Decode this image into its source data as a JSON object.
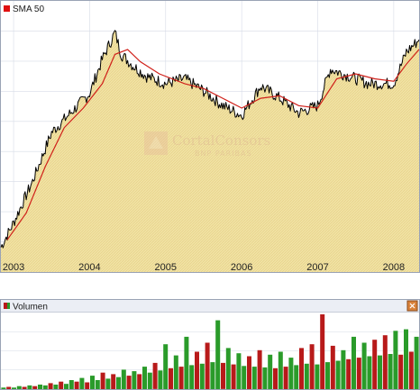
{
  "chart_data": [
    {
      "type": "line",
      "title": "",
      "legend": [
        "SMA 50"
      ],
      "legend_placement": "top-left",
      "xlabel": "",
      "ylabel": "",
      "x_ticks": [
        "2003",
        "2004",
        "2005",
        "2006",
        "2007",
        "2008"
      ],
      "grid": true,
      "series": [
        {
          "name": "",
          "kind": "price",
          "color": "#000000",
          "fill": "#f1e2a4",
          "x": [
            "2002-11",
            "2003-01",
            "2003-04",
            "2003-07",
            "2003-10",
            "2004-01",
            "2004-03",
            "2004-05",
            "2004-06",
            "2004-08",
            "2004-10",
            "2005-01",
            "2005-04",
            "2005-07",
            "2005-10",
            "2006-01",
            "2006-04",
            "2006-07",
            "2006-10",
            "2007-01",
            "2007-03",
            "2007-06",
            "2007-09",
            "2008-01",
            "2008-03",
            "2008-05"
          ],
          "values": [
            0.05,
            0.15,
            0.32,
            0.52,
            0.6,
            0.68,
            0.82,
            0.93,
            0.84,
            0.79,
            0.75,
            0.72,
            0.74,
            0.69,
            0.63,
            0.59,
            0.71,
            0.66,
            0.6,
            0.63,
            0.78,
            0.75,
            0.72,
            0.72,
            0.85,
            0.9
          ]
        },
        {
          "name": "SMA 50",
          "kind": "sma",
          "color": "#d0201a",
          "x": [
            "2002-12",
            "2003-03",
            "2003-06",
            "2003-09",
            "2003-12",
            "2004-03",
            "2004-05",
            "2004-07",
            "2004-09",
            "2004-12",
            "2005-04",
            "2005-07",
            "2005-10",
            "2006-01",
            "2006-04",
            "2006-07",
            "2006-10",
            "2007-01",
            "2007-04",
            "2007-07",
            "2007-10",
            "2008-01",
            "2008-03",
            "2008-05"
          ],
          "values": [
            0.08,
            0.19,
            0.38,
            0.54,
            0.62,
            0.72,
            0.84,
            0.86,
            0.81,
            0.76,
            0.72,
            0.7,
            0.66,
            0.62,
            0.66,
            0.67,
            0.63,
            0.62,
            0.74,
            0.76,
            0.74,
            0.73,
            0.8,
            0.86
          ]
        }
      ]
    },
    {
      "type": "bar",
      "title": "",
      "legend": [
        "Volumen"
      ],
      "legend_placement": "top-left",
      "xlabel": "",
      "ylabel": "",
      "grid": true,
      "colors": {
        "up": "#2a9b2a",
        "down": "#b81a1a"
      },
      "series": [
        {
          "name": "Volumen",
          "values": [
            0.02,
            0.03,
            0.02,
            0.04,
            0.03,
            0.05,
            0.04,
            0.06,
            0.05,
            0.08,
            0.06,
            0.1,
            0.07,
            0.12,
            0.1,
            0.15,
            0.09,
            0.18,
            0.12,
            0.22,
            0.14,
            0.2,
            0.16,
            0.26,
            0.18,
            0.24,
            0.2,
            0.3,
            0.22,
            0.35,
            0.25,
            0.6,
            0.28,
            0.45,
            0.3,
            0.7,
            0.32,
            0.5,
            0.34,
            0.62,
            0.36,
            0.92,
            0.35,
            0.55,
            0.33,
            0.48,
            0.31,
            0.44,
            0.3,
            0.52,
            0.29,
            0.46,
            0.28,
            0.5,
            0.3,
            0.42,
            0.32,
            0.55,
            0.34,
            0.6,
            0.33,
            1.0,
            0.36,
            0.58,
            0.38,
            0.52,
            0.4,
            0.7,
            0.42,
            0.62,
            0.44,
            0.66,
            0.45,
            0.72,
            0.47,
            0.78,
            0.46,
            0.8,
            0.5,
            0.7
          ],
          "signs": [
            "up",
            "down",
            "up",
            "up",
            "down",
            "up",
            "down",
            "up",
            "up",
            "down",
            "up",
            "down",
            "up",
            "up",
            "down",
            "up",
            "down",
            "up",
            "up",
            "down",
            "up",
            "down",
            "up",
            "up",
            "down",
            "up",
            "down",
            "up",
            "up",
            "down",
            "up",
            "up",
            "down",
            "up",
            "down",
            "up",
            "up",
            "down",
            "up",
            "down",
            "up",
            "up",
            "down",
            "up",
            "down",
            "up",
            "up",
            "down",
            "up",
            "down",
            "up",
            "up",
            "down",
            "up",
            "down",
            "up",
            "up",
            "down",
            "up",
            "down",
            "up",
            "down",
            "up",
            "down",
            "up",
            "up",
            "down",
            "up",
            "down",
            "up",
            "up",
            "down",
            "up",
            "down",
            "up",
            "up",
            "down",
            "up",
            "down",
            "up"
          ]
        }
      ]
    }
  ],
  "watermark": {
    "line1": "CortalConsors",
    "line2": "BNP PARIBAS"
  },
  "colors": {
    "panel_border": "#9aa3b5",
    "grid": "#d6dbe6",
    "price_fill": "#f1e2a4",
    "header_bg": "#ebeef5"
  },
  "icons": [
    "legend-swatch-red",
    "legend-swatch-red-green",
    "panel-close-icon"
  ]
}
